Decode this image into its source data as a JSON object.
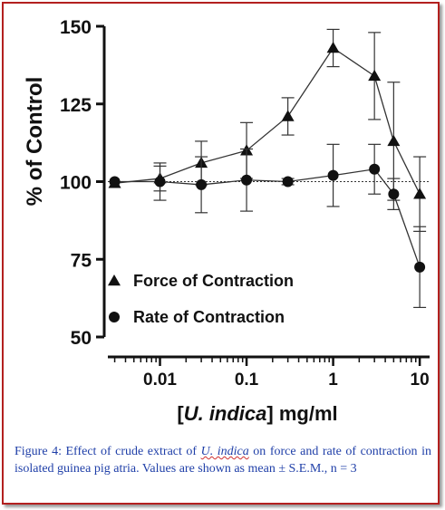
{
  "chart_data": {
    "type": "line",
    "ylabel": "% of Control",
    "xlabel_prefix": "[",
    "xlabel_italic": "U. indica",
    "xlabel_suffix": "] mg/ml",
    "x_scale": "log",
    "x_ticks": [
      "0.01",
      "0.1",
      "1",
      "10"
    ],
    "y_ticks": [
      "50",
      "75",
      "100",
      "125",
      "150"
    ],
    "ylim": [
      50,
      150
    ],
    "xlim": [
      0.0025,
      13
    ],
    "reference_line": {
      "y": 100,
      "style": "dotted"
    },
    "legend_position": "lower-left",
    "series": [
      {
        "name": "Force of Contraction",
        "marker": "triangle",
        "x": [
          0.003,
          0.01,
          0.03,
          0.1,
          0.3,
          1,
          3,
          5,
          10
        ],
        "y": [
          99.5,
          101,
          106,
          110,
          121,
          143,
          134,
          113,
          96
        ],
        "err": [
          0.5,
          4,
          7,
          9,
          6,
          6,
          14,
          19,
          12
        ]
      },
      {
        "name": "Rate of Contraction",
        "marker": "circle",
        "x": [
          0.003,
          0.01,
          0.03,
          0.1,
          0.3,
          1,
          3,
          5,
          10
        ],
        "y": [
          100,
          100,
          99,
          100.5,
          100,
          102,
          104,
          96,
          72.5
        ],
        "err": [
          0.5,
          6,
          9,
          10,
          1,
          10,
          8,
          5,
          13
        ]
      }
    ]
  },
  "caption": {
    "before": "Figure 4: Effect of crude extract of ",
    "species": "U. indica",
    "after": " on force and rate of contraction in isolated guinea pig atria. Values are shown as mean ± S.E.M., n = 3"
  }
}
